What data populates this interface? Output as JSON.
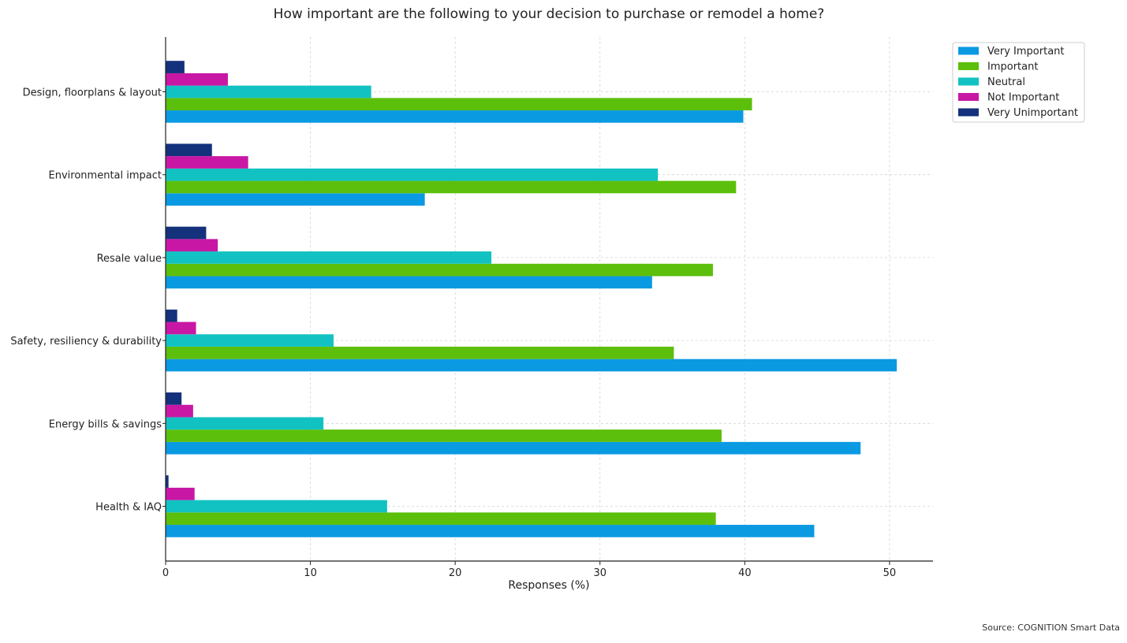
{
  "chart_data": {
    "type": "bar",
    "orientation": "horizontal",
    "title": "How important are the following to your decision to purchase or remodel a home?",
    "xlabel": "Responses (%)",
    "ylabel": "",
    "xlim": [
      0,
      53
    ],
    "x_ticks": [
      0,
      10,
      20,
      30,
      40,
      50
    ],
    "categories": [
      "Health & IAQ",
      "Energy bills & savings",
      "Safety, resiliency & durability",
      "Resale value",
      "Environmental impact",
      "Design, floorplans & layout"
    ],
    "series": [
      {
        "name": "Very Important",
        "color": "#0a9ae2",
        "values": [
          44.8,
          48.0,
          50.5,
          33.6,
          17.9,
          39.9
        ]
      },
      {
        "name": "Important",
        "color": "#5cbf0b",
        "values": [
          38.0,
          38.4,
          35.1,
          37.8,
          39.4,
          40.5
        ]
      },
      {
        "name": "Neutral",
        "color": "#12c2c2",
        "values": [
          15.3,
          10.9,
          11.6,
          22.5,
          34.0,
          14.2
        ]
      },
      {
        "name": "Not Important",
        "color": "#c817a5",
        "values": [
          2.0,
          1.9,
          2.1,
          3.6,
          5.7,
          4.3
        ]
      },
      {
        "name": "Very Unimportant",
        "color": "#14317c",
        "values": [
          0.2,
          1.1,
          0.8,
          2.8,
          3.2,
          1.3
        ]
      }
    ],
    "grid": true,
    "legend_position": "top-right",
    "source": "Source: COGNITION Smart Data"
  }
}
